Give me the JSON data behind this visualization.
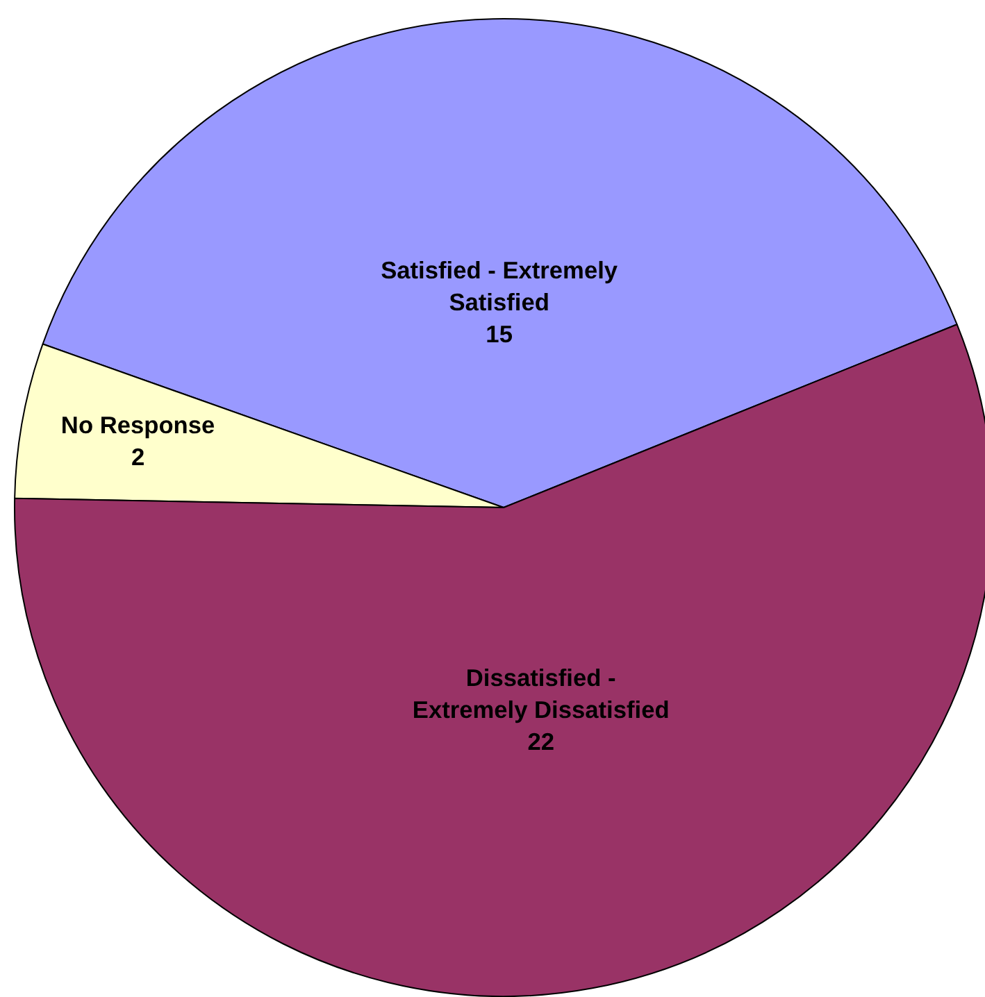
{
  "chart_data": {
    "type": "pie",
    "categories": [
      "Satisfied - Extremely Satisfied",
      "No Response",
      "Dissatisfied - Extremely Dissatisfied"
    ],
    "values": [
      15,
      2,
      22
    ],
    "colors": [
      "#9999ff",
      "#ffffcc",
      "#993366"
    ],
    "data_labels": true
  }
}
